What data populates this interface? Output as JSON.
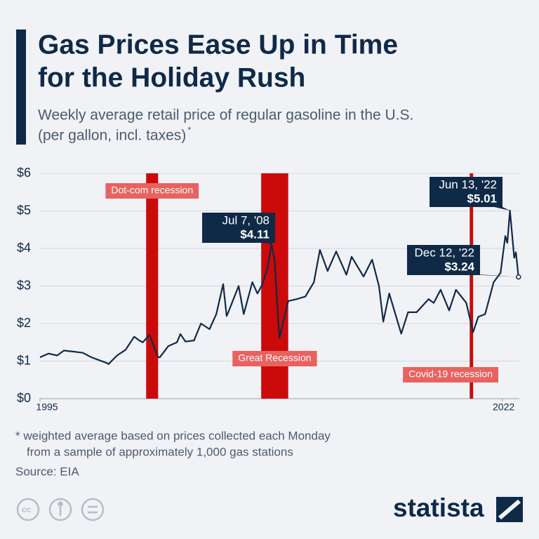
{
  "chart_data": {
    "type": "line",
    "title_lines": [
      "Gas Prices Ease Up in Time",
      "for the Holiday Rush"
    ],
    "subtitle_lines": [
      "Weekly average retail price of regular gasoline in the U.S.",
      "(per gallon, incl. taxes)"
    ],
    "subtitle_note_mark": "*",
    "x": [
      1995.0,
      1995.5,
      1996.0,
      1996.4,
      1997.0,
      1997.5,
      1998.0,
      1998.9,
      1999.0,
      1999.5,
      2000.0,
      2000.5,
      2000.8,
      2001.0,
      2001.4,
      2001.9,
      2002.0,
      2002.5,
      2003.0,
      2003.2,
      2003.5,
      2004.0,
      2004.4,
      2004.9,
      2005.3,
      2005.7,
      2005.9,
      2006.0,
      2006.6,
      2006.9,
      2007.4,
      2007.7,
      2008.0,
      2008.3,
      2008.52,
      2008.7,
      2008.98,
      2009.5,
      2010.0,
      2010.5,
      2011.0,
      2011.35,
      2011.8,
      2012.3,
      2012.9,
      2013.2,
      2013.9,
      2014.4,
      2014.8,
      2015.05,
      2015.4,
      2016.1,
      2016.5,
      2017.0,
      2017.7,
      2018.0,
      2018.4,
      2018.9,
      2019.3,
      2019.9,
      2020.3,
      2020.6,
      2021.0,
      2021.5,
      2021.9,
      2022.18,
      2022.3,
      2022.45,
      2022.7,
      2022.8,
      2022.95
    ],
    "values": [
      1.1,
      1.2,
      1.15,
      1.28,
      1.25,
      1.22,
      1.1,
      0.95,
      0.92,
      1.15,
      1.3,
      1.65,
      1.55,
      1.5,
      1.7,
      1.1,
      1.1,
      1.4,
      1.5,
      1.72,
      1.52,
      1.55,
      2.0,
      1.85,
      2.25,
      3.05,
      2.2,
      2.3,
      3.0,
      2.25,
      3.1,
      2.8,
      3.05,
      3.5,
      4.11,
      3.7,
      1.61,
      2.6,
      2.65,
      2.72,
      3.1,
      3.96,
      3.4,
      3.92,
      3.3,
      3.78,
      3.25,
      3.7,
      3.0,
      2.05,
      2.8,
      1.73,
      2.3,
      2.3,
      2.65,
      2.55,
      2.9,
      2.35,
      2.9,
      2.55,
      1.77,
      2.18,
      2.25,
      3.1,
      3.35,
      4.33,
      4.15,
      5.01,
      3.75,
      3.9,
      3.24
    ],
    "color": "#0f2a47",
    "xlim": [
      1995,
      2023.0
    ],
    "xticks": [
      1995,
      2022
    ],
    "ylim": [
      0,
      6
    ],
    "yticks": [
      {
        "value": 0,
        "label": "$0"
      },
      {
        "value": 1,
        "label": "$1"
      },
      {
        "value": 2,
        "label": "$2"
      },
      {
        "value": 3,
        "label": "$3"
      },
      {
        "value": 4,
        "label": "$4"
      },
      {
        "value": 5,
        "label": "$5"
      },
      {
        "value": 6,
        "label": "$6"
      }
    ],
    "grid": true,
    "recessions": [
      {
        "label": "Dot-com recession",
        "start": 2001.2,
        "end": 2001.9
      },
      {
        "label": "Great Recession",
        "start": 2007.92,
        "end": 2009.5
      },
      {
        "label": "Covid-19 recession",
        "start": 2020.1,
        "end": 2020.3
      }
    ],
    "recession_color": "#cc0a0a",
    "annotations": [
      {
        "label": "Jul 7, '08",
        "x": 2008.52,
        "value": 4.11,
        "value_label": "$4.11"
      },
      {
        "label": "Jun 13, '22",
        "x": 2022.45,
        "value": 5.01,
        "value_label": "$5.01"
      },
      {
        "label": "Dec 12, '22",
        "x": 2022.95,
        "value": 3.24,
        "value_label": "$3.24"
      }
    ],
    "footnote_lines": [
      "* weighted average based on prices collected each Monday",
      "from a sample of approximately 1,000 gas stations"
    ],
    "source": "Source: EIA",
    "brand": "statista"
  }
}
